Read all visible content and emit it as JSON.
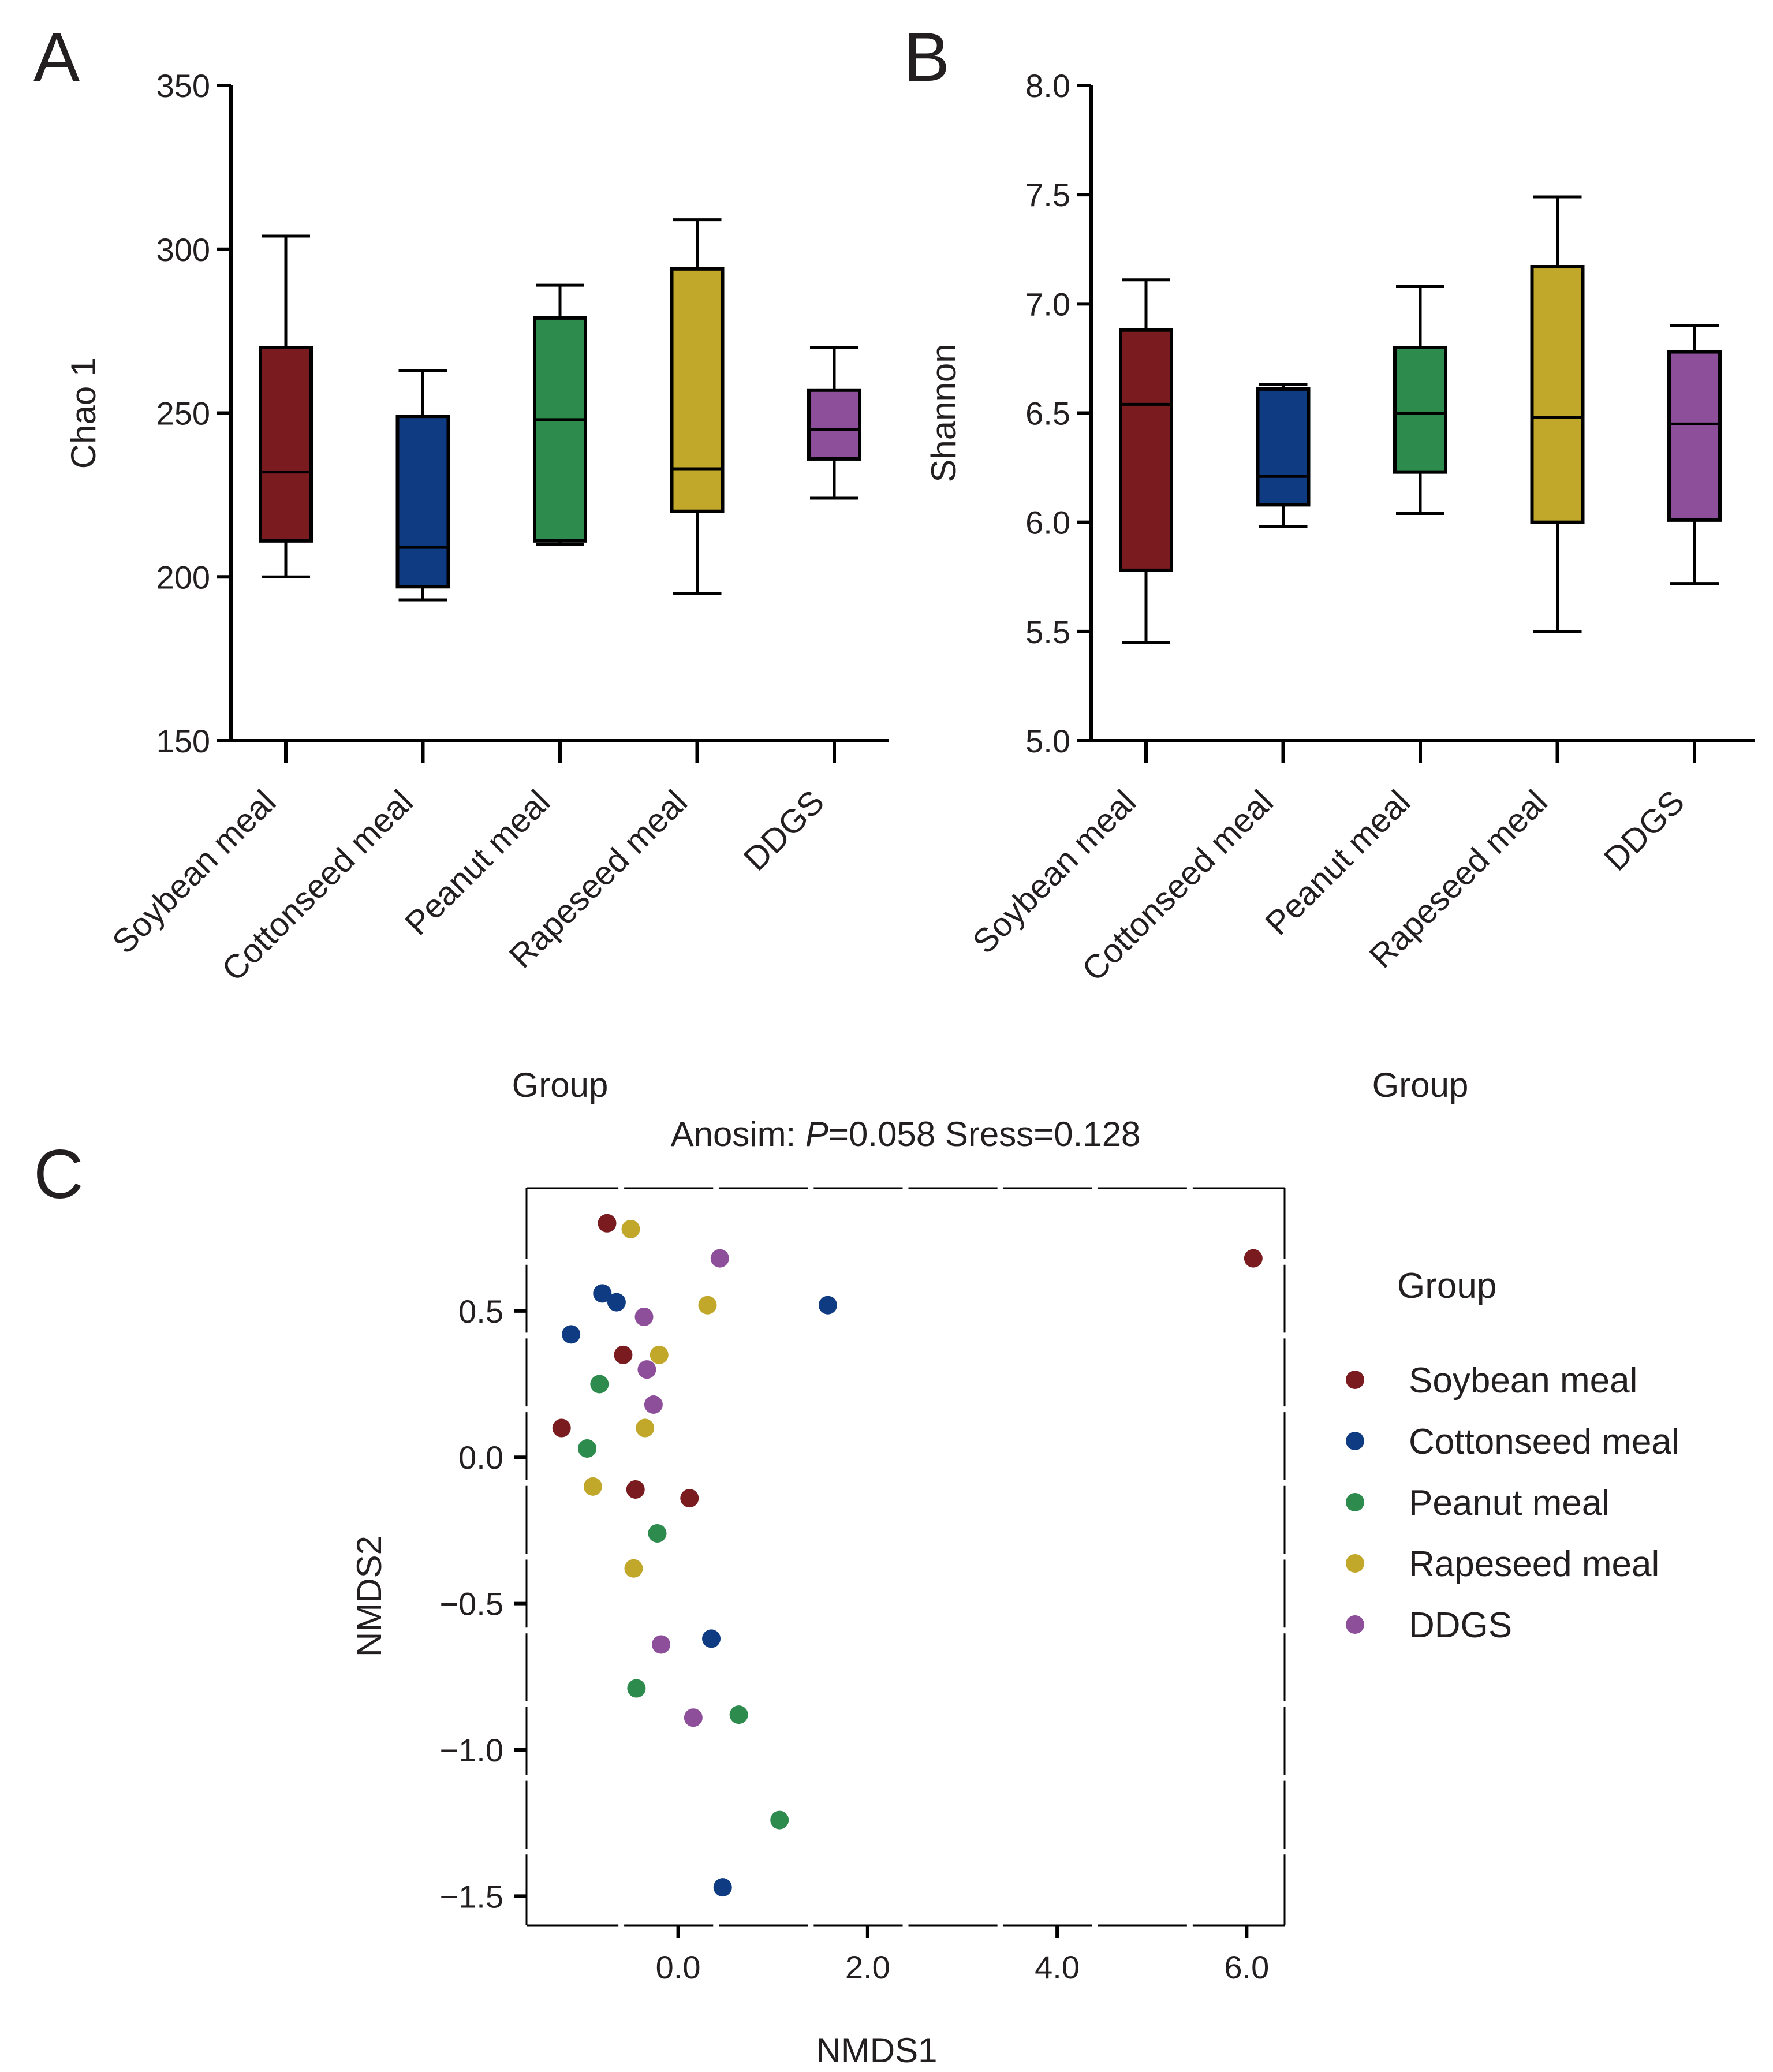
{
  "panels": {
    "A": {
      "letter": "A"
    },
    "B": {
      "letter": "B"
    },
    "C": {
      "letter": "C"
    }
  },
  "colors": {
    "Soybean meal": "#7a1b1f",
    "Cottonseed meal": "#0f3b82",
    "Peanut meal": "#2e8b4e",
    "Rapeseed meal": "#c1a72a",
    "DDGS": "#8d4f9a"
  },
  "chart_data": [
    {
      "id": "A",
      "type": "box",
      "title": "",
      "xlabel": "Group",
      "ylabel": "Chao 1",
      "ylim": [
        150,
        350
      ],
      "yticks": [
        150,
        200,
        250,
        300,
        350
      ],
      "ytick_labels": [
        "150",
        "200",
        "250",
        "300",
        "350"
      ],
      "categories": [
        "Soybean meal",
        "Cottonseed meal",
        "Peanut meal",
        "Rapeseed meal",
        "DDGS"
      ],
      "boxes": [
        {
          "min": 200,
          "q1": 211,
          "median": 232,
          "q3": 270,
          "max": 304
        },
        {
          "min": 193,
          "q1": 197,
          "median": 209,
          "q3": 249,
          "max": 263
        },
        {
          "min": 210,
          "q1": 211,
          "median": 248,
          "q3": 279,
          "max": 289
        },
        {
          "min": 195,
          "q1": 220,
          "median": 233,
          "q3": 294,
          "max": 309
        },
        {
          "min": 224,
          "q1": 236,
          "median": 245,
          "q3": 257,
          "max": 270
        }
      ]
    },
    {
      "id": "B",
      "type": "box",
      "title": "",
      "xlabel": "Group",
      "ylabel": "Shannon",
      "ylim": [
        5.0,
        8.0
      ],
      "yticks": [
        5.0,
        5.5,
        6.0,
        6.5,
        7.0,
        7.5,
        8.0
      ],
      "ytick_labels": [
        "5.0",
        "5.5",
        "6.0",
        "6.5",
        "7.0",
        "7.5",
        "8.0"
      ],
      "categories": [
        "Soybean meal",
        "Cottonseed meal",
        "Peanut meal",
        "Rapeseed meal",
        "DDGS"
      ],
      "boxes": [
        {
          "min": 5.45,
          "q1": 5.78,
          "median": 6.54,
          "q3": 6.88,
          "max": 7.11
        },
        {
          "min": 5.98,
          "q1": 6.08,
          "median": 6.21,
          "q3": 6.61,
          "max": 6.63
        },
        {
          "min": 6.04,
          "q1": 6.23,
          "median": 6.5,
          "q3": 6.8,
          "max": 7.08
        },
        {
          "min": 5.5,
          "q1": 6.0,
          "median": 6.48,
          "q3": 7.17,
          "max": 7.49
        },
        {
          "min": 5.72,
          "q1": 6.01,
          "median": 6.45,
          "q3": 6.78,
          "max": 6.9
        }
      ]
    },
    {
      "id": "C",
      "type": "scatter",
      "title_prefix": "Anosim: ",
      "title_p": "P",
      "title_suffix": "=0.058 Sress=0.128",
      "xlabel": "NMDS1",
      "ylabel": "NMDS2",
      "xlim": [
        -1.6,
        6.4
      ],
      "ylim": [
        -1.6,
        0.92
      ],
      "xticks": [
        0.0,
        2.0,
        4.0,
        6.0
      ],
      "xtick_labels": [
        "0.0",
        "2.0",
        "4.0",
        "6.0"
      ],
      "yticks": [
        0.5,
        0.0,
        -0.5,
        -1.0,
        -1.5
      ],
      "ytick_labels": [
        "0.5",
        "0.0",
        "−0.5",
        "−1.0",
        "−1.5"
      ],
      "legend_title": "Group",
      "legend_placement": "right",
      "series": [
        {
          "name": "Soybean meal",
          "points": [
            [
              -0.75,
              0.8
            ],
            [
              -0.58,
              0.35
            ],
            [
              -1.23,
              0.1
            ],
            [
              -0.45,
              -0.11
            ],
            [
              0.12,
              -0.14
            ],
            [
              6.07,
              0.68
            ]
          ]
        },
        {
          "name": "Cottonseed meal",
          "points": [
            [
              -0.8,
              0.56
            ],
            [
              -0.65,
              0.53
            ],
            [
              -1.13,
              0.42
            ],
            [
              1.58,
              0.52
            ],
            [
              0.35,
              -0.62
            ],
            [
              0.47,
              -1.47
            ]
          ]
        },
        {
          "name": "Peanut meal",
          "points": [
            [
              -0.83,
              0.25
            ],
            [
              -0.96,
              0.03
            ],
            [
              -0.22,
              -0.26
            ],
            [
              -0.44,
              -0.79
            ],
            [
              0.64,
              -0.88
            ],
            [
              1.07,
              -1.24
            ]
          ]
        },
        {
          "name": "Rapeseed meal",
          "points": [
            [
              -0.5,
              0.78
            ],
            [
              0.31,
              0.52
            ],
            [
              -0.2,
              0.35
            ],
            [
              -0.35,
              0.1
            ],
            [
              -0.9,
              -0.1
            ],
            [
              -0.47,
              -0.38
            ]
          ]
        },
        {
          "name": "DDGS",
          "points": [
            [
              0.44,
              0.68
            ],
            [
              -0.36,
              0.48
            ],
            [
              -0.33,
              0.3
            ],
            [
              -0.26,
              0.18
            ],
            [
              -0.18,
              -0.64
            ],
            [
              0.16,
              -0.89
            ]
          ]
        }
      ]
    }
  ]
}
